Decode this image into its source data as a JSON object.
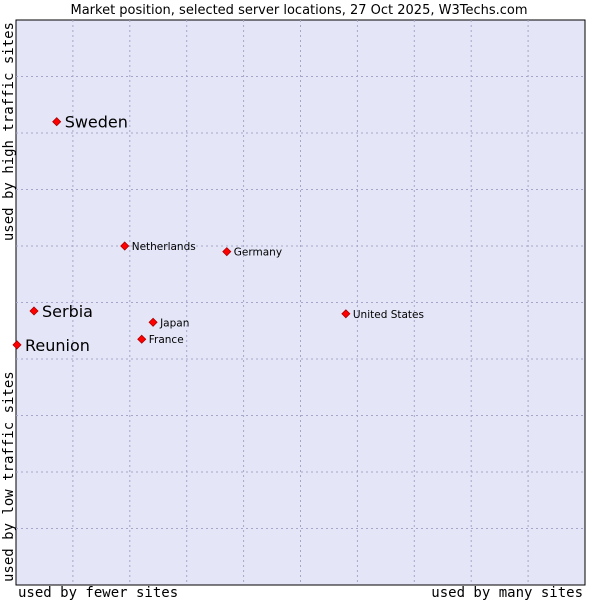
{
  "chart_data": {
    "type": "scatter",
    "title": "Market position, selected server locations, 27 Oct 2025, W3Techs.com",
    "xlabel_left": "used by fewer sites",
    "xlabel_right": "used by many sites",
    "ylabel_bottom": "used by low traffic sites",
    "ylabel_top": "used by high traffic sites",
    "xlim": [
      0,
      100
    ],
    "ylim": [
      0,
      100
    ],
    "grid": true,
    "points": [
      {
        "name": "Sweden",
        "x": 7,
        "y": 82,
        "emphasis": true
      },
      {
        "name": "Netherlands",
        "x": 19,
        "y": 60,
        "emphasis": false
      },
      {
        "name": "Germany",
        "x": 37,
        "y": 59,
        "emphasis": false
      },
      {
        "name": "Serbia",
        "x": 3,
        "y": 48.5,
        "emphasis": true
      },
      {
        "name": "Japan",
        "x": 24,
        "y": 46.5,
        "emphasis": false
      },
      {
        "name": "United States",
        "x": 58,
        "y": 48,
        "emphasis": false
      },
      {
        "name": "France",
        "x": 22,
        "y": 43.5,
        "emphasis": false
      },
      {
        "name": "Reunion",
        "x": 0,
        "y": 42.5,
        "emphasis": true
      }
    ]
  },
  "colors": {
    "plot_bg": "#e4e6f8",
    "marker": "#ff0000",
    "marker_edge": "#aa0000"
  }
}
